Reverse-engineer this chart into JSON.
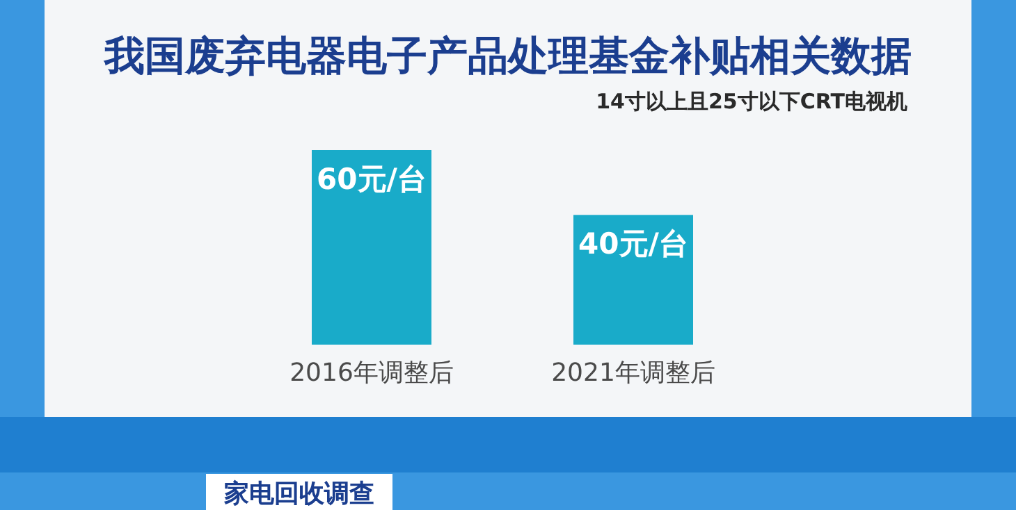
{
  "chart_data": {
    "type": "bar",
    "title": "我国废弃电器电子产品处理基金补贴相关数据",
    "subtitle": "14寸以上且25寸以下CRT电视机",
    "categories": [
      "2016年调整后",
      "2021年调整后"
    ],
    "values": [
      60,
      40
    ],
    "value_labels": [
      "60元/台",
      "40元/台"
    ],
    "color": "#19abc9",
    "annotations": [
      "家电回收调查"
    ]
  }
}
